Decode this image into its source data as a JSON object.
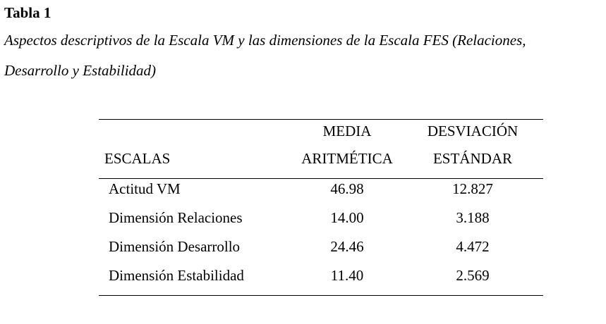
{
  "header": {
    "label": "Tabla 1",
    "title_line1": "Aspectos descriptivos de la Escala VM y las dimensiones de la Escala FES (Relaciones,",
    "title_line2": "Desarrollo y Estabilidad)"
  },
  "table": {
    "columns": [
      [
        "ESCALAS"
      ],
      [
        "MEDIA",
        "ARITMÉTICA"
      ],
      [
        "DESVIACIÓN",
        "ESTÁNDAR"
      ]
    ],
    "rows": [
      [
        "Actitud VM",
        "46.98",
        "12.827"
      ],
      [
        "Dimensión Relaciones",
        "14.00",
        "3.188"
      ],
      [
        "Dimensión Desarrollo",
        "24.46",
        "4.472"
      ],
      [
        "Dimensión Estabilidad",
        "11.40",
        "2.569"
      ]
    ]
  }
}
